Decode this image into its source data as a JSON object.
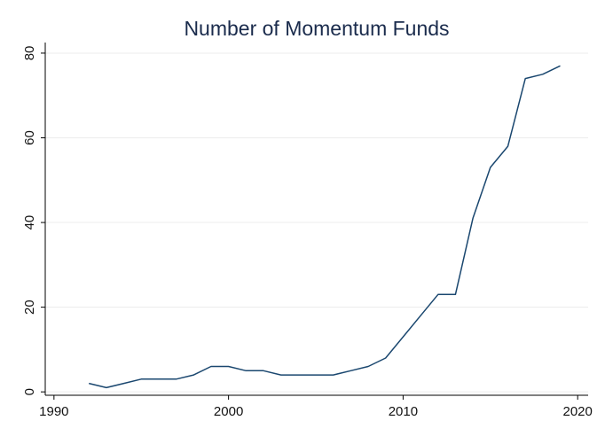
{
  "chart_data": {
    "type": "line",
    "title": "Number of Momentum Funds",
    "xlabel": "",
    "ylabel": "",
    "xlim": [
      1989.5,
      2020.6
    ],
    "ylim": [
      -0.8,
      82.5
    ],
    "x_ticks": [
      1990,
      2000,
      2010,
      2020
    ],
    "y_ticks": [
      0,
      20,
      40,
      60,
      80
    ],
    "x_tick_labels": [
      "1990",
      "2000",
      "2010",
      "2020"
    ],
    "y_tick_labels": [
      "0",
      "20",
      "40",
      "60",
      "80"
    ],
    "grid": true,
    "legend": "none",
    "series": [
      {
        "color": "#1a476f",
        "x": [
          1992,
          1993,
          1994,
          1995,
          1996,
          1997,
          1998,
          1999,
          2000,
          2001,
          2002,
          2003,
          2004,
          2005,
          2006,
          2007,
          2008,
          2009,
          2010,
          2011,
          2012,
          2013,
          2014,
          2015,
          2016,
          2017,
          2018,
          2019
        ],
        "values": [
          2,
          1,
          2,
          3,
          3,
          3,
          4,
          6,
          6,
          5,
          5,
          4,
          4,
          4,
          4,
          5,
          6,
          8,
          13,
          18,
          23,
          23,
          41,
          53,
          58,
          74,
          75,
          77
        ]
      }
    ]
  }
}
